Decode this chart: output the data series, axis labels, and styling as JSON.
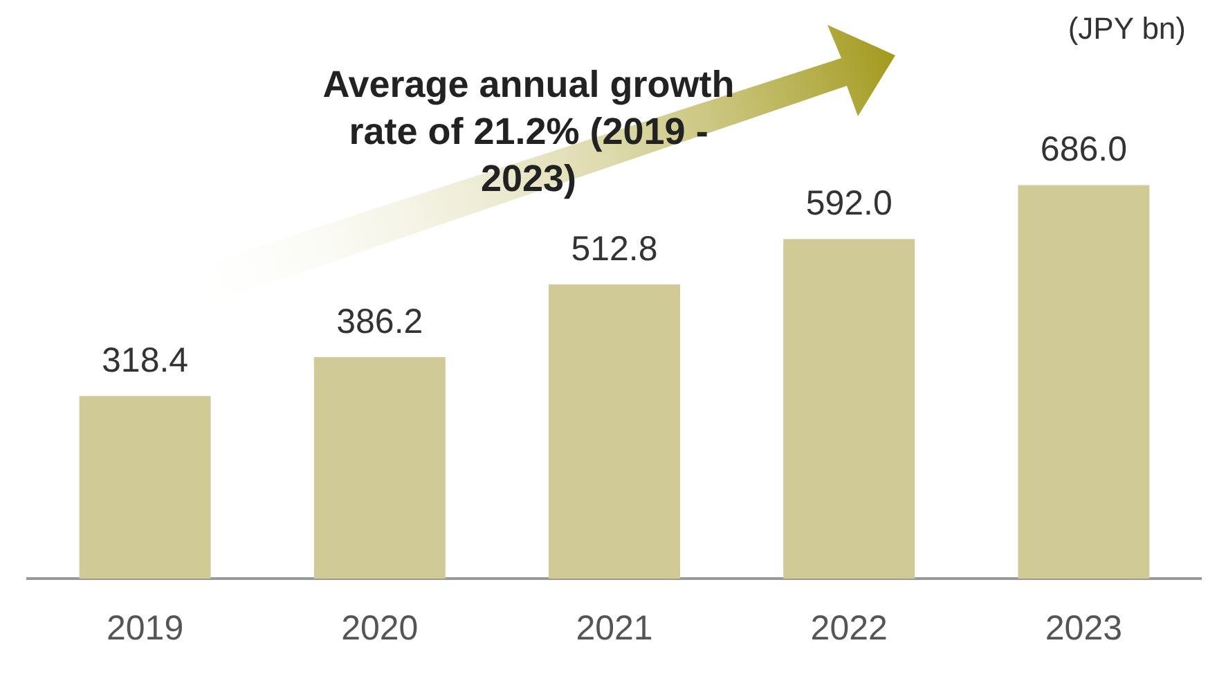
{
  "chart_data": {
    "type": "bar",
    "ylabel": "(JPY bn)",
    "categories": [
      "2019",
      "2020",
      "2021",
      "2022",
      "2023"
    ],
    "values": [
      318.4,
      386.2,
      512.8,
      592.0,
      686.0
    ],
    "value_labels": [
      "318.4",
      "386.2",
      "512.8",
      "592.0",
      "686.0"
    ],
    "color": "#d0ca96",
    "tick_labels": "x",
    "grid": false,
    "legend": false,
    "annotations": [
      "Average annual growth rate of 21.2% (2019 - 2023)"
    ]
  }
}
